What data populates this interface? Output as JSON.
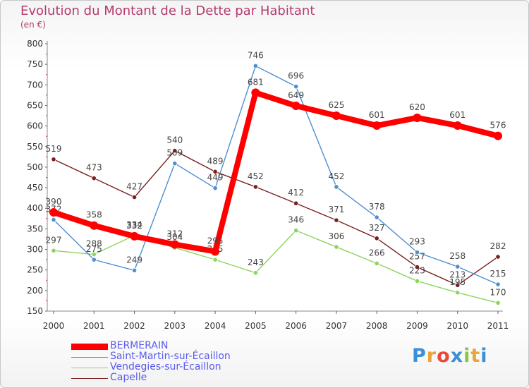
{
  "title": "Evolution du Montant de la Dette par Habitant",
  "subtitle": "(en €)",
  "logo": {
    "letters": [
      "P",
      "r",
      "o",
      "x",
      "i",
      "t",
      "i"
    ],
    "colors": [
      "#3b8fd6",
      "#e8a53a",
      "#e84a3a",
      "#3b8fd6",
      "#8cc63f",
      "#e8a53a",
      "#3b8fd6"
    ]
  },
  "chart_data": {
    "type": "line",
    "categories": [
      "2000",
      "2001",
      "2002",
      "2003",
      "2004",
      "2005",
      "2006",
      "2007",
      "2008",
      "2009",
      "2010",
      "2011"
    ],
    "y_ticks": [
      "150",
      "200",
      "250",
      "300",
      "350",
      "400",
      "450",
      "500",
      "550",
      "600",
      "650",
      "700",
      "750",
      "800"
    ],
    "ylim": [
      150,
      800
    ],
    "grid": false,
    "legend_position": "bottom-left",
    "series": [
      {
        "name": "Capelle",
        "color": "#7a1f1f",
        "values": [
          519,
          473,
          427,
          540,
          489,
          452,
          412,
          371,
          327,
          257,
          213,
          282
        ],
        "labels": [
          "519",
          "473",
          "427",
          "540",
          "489",
          "452",
          "412",
          "371",
          "327",
          "257",
          "213",
          "282"
        ]
      },
      {
        "name": "Vendegies-sur-Écaillon",
        "color": "#8ed45a",
        "values": [
          297,
          288,
          334,
          304,
          275,
          243,
          346,
          306,
          266,
          223,
          195,
          170
        ],
        "labels": [
          "297",
          "288",
          "334",
          "304",
          "275",
          "243",
          "346",
          "306",
          "266",
          "223",
          "195",
          "170"
        ]
      },
      {
        "name": "Saint-Martin-sur-Écaillon",
        "color": "#4f8fcf",
        "values": [
          372,
          275,
          249,
          509,
          449,
          746,
          696,
          452,
          378,
          293,
          258,
          215
        ],
        "labels": [
          "372",
          "275",
          "249",
          "509",
          "449",
          "746",
          "696",
          "452",
          "378",
          "293",
          "258",
          "215"
        ]
      },
      {
        "name": "BERMERAIN",
        "color": "#ff0000",
        "values": [
          390,
          358,
          332,
          312,
          295,
          681,
          649,
          625,
          601,
          620,
          601,
          576
        ],
        "labels": [
          "390",
          "358",
          "332",
          "312",
          "295",
          "681",
          "649",
          "625",
          "601",
          "620",
          "601",
          "576"
        ]
      }
    ],
    "legend_order": [
      "BERMERAIN",
      "Saint-Martin-sur-Écaillon",
      "Vendegies-sur-Écaillon",
      "Capelle"
    ]
  }
}
